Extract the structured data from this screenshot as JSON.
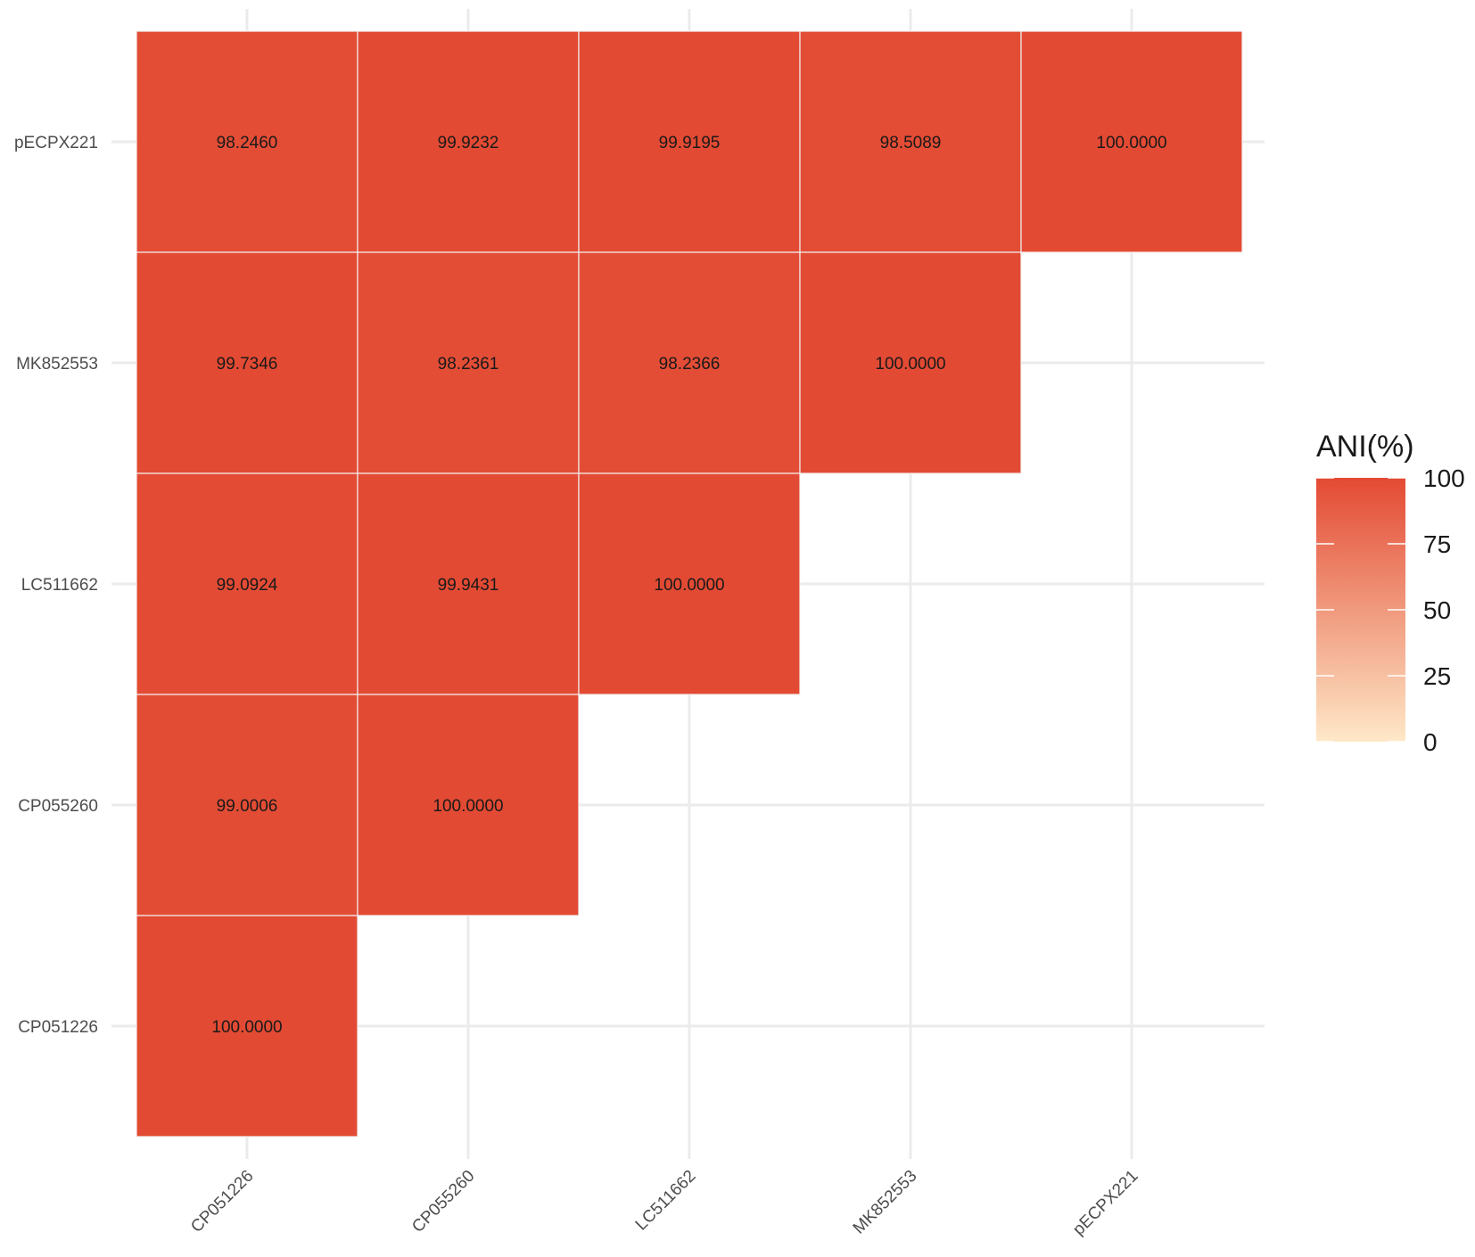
{
  "chart_data": {
    "type": "heatmap",
    "x_categories": [
      "CP051226",
      "CP055260",
      "LC511662",
      "MK852553",
      "pECPX221"
    ],
    "y_categories": [
      "CP051226",
      "CP055260",
      "LC511662",
      "MK852553",
      "pECPX221"
    ],
    "cells": [
      {
        "x": "CP051226",
        "y": "pECPX221",
        "value": 98.246,
        "label": "98.2460"
      },
      {
        "x": "CP055260",
        "y": "pECPX221",
        "value": 99.9232,
        "label": "99.9232"
      },
      {
        "x": "LC511662",
        "y": "pECPX221",
        "value": 99.9195,
        "label": "99.9195"
      },
      {
        "x": "MK852553",
        "y": "pECPX221",
        "value": 98.5089,
        "label": "98.5089"
      },
      {
        "x": "pECPX221",
        "y": "pECPX221",
        "value": 100.0,
        "label": "100.0000"
      },
      {
        "x": "CP051226",
        "y": "MK852553",
        "value": 99.7346,
        "label": "99.7346"
      },
      {
        "x": "CP055260",
        "y": "MK852553",
        "value": 98.2361,
        "label": "98.2361"
      },
      {
        "x": "LC511662",
        "y": "MK852553",
        "value": 98.2366,
        "label": "98.2366"
      },
      {
        "x": "MK852553",
        "y": "MK852553",
        "value": 100.0,
        "label": "100.0000"
      },
      {
        "x": "CP051226",
        "y": "LC511662",
        "value": 99.0924,
        "label": "99.0924"
      },
      {
        "x": "CP055260",
        "y": "LC511662",
        "value": 99.9431,
        "label": "99.9431"
      },
      {
        "x": "LC511662",
        "y": "LC511662",
        "value": 100.0,
        "label": "100.0000"
      },
      {
        "x": "CP051226",
        "y": "CP055260",
        "value": 99.0006,
        "label": "99.0006"
      },
      {
        "x": "CP055260",
        "y": "CP055260",
        "value": 100.0,
        "label": "100.0000"
      },
      {
        "x": "CP051226",
        "y": "CP051226",
        "value": 100.0,
        "label": "100.0000"
      }
    ],
    "legend": {
      "title": "ANI(%)",
      "min": 0,
      "max": 100,
      "ticks": [
        "0",
        "25",
        "50",
        "75",
        "100"
      ],
      "color_low": "#fee8c8",
      "color_high": "#e34a33",
      "placement": "right"
    },
    "grid": true,
    "x_tick_rotation": 45
  }
}
